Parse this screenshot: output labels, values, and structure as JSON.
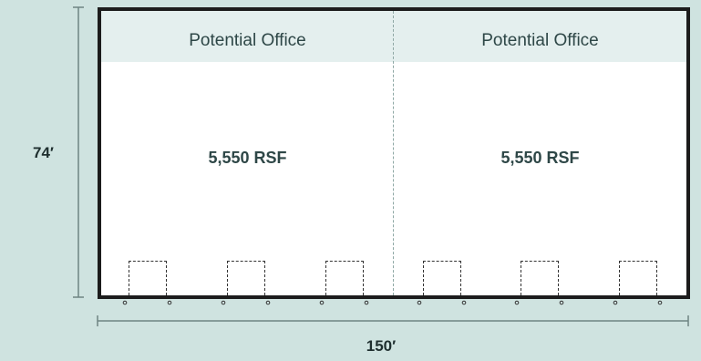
{
  "offices": [
    {
      "label": "Potential Office",
      "area": "5,550 RSF"
    },
    {
      "label": "Potential Office",
      "area": "5,550 RSF"
    }
  ],
  "dimensions": {
    "height": "74′",
    "width": "150′"
  },
  "door_count": 6,
  "colors": {
    "background": "#cfe3e0",
    "band": "#e4efee",
    "wall": "#1c1c1c",
    "text": "#2e4747"
  }
}
